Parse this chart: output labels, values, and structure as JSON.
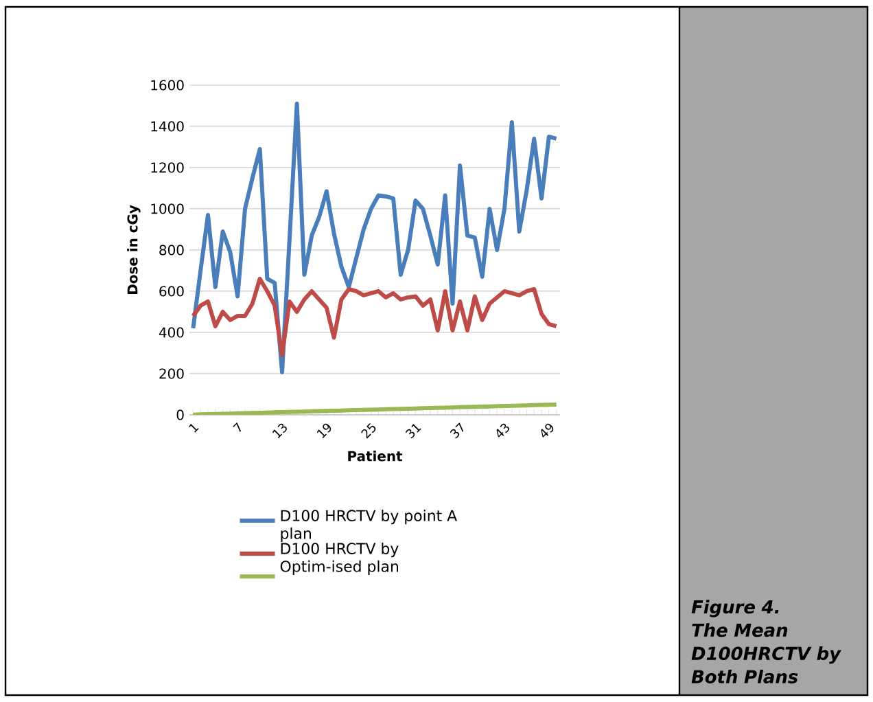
{
  "chart_data": {
    "type": "line",
    "xlabel": "Patient",
    "ylabel": "Dose in cGy",
    "categories": [
      "1",
      null,
      null,
      null,
      null,
      null,
      "7",
      null,
      null,
      null,
      null,
      null,
      "13",
      null,
      null,
      null,
      null,
      null,
      "19",
      null,
      null,
      null,
      null,
      null,
      "25",
      null,
      null,
      null,
      null,
      null,
      "31",
      null,
      null,
      null,
      null,
      null,
      "37",
      null,
      null,
      null,
      null,
      null,
      "43",
      null,
      null,
      null,
      null,
      null,
      "49",
      null
    ],
    "series": [
      {
        "name": "D100 HRCTV by point A plan",
        "color": "#4a7ebb",
        "values": [
          420,
          700,
          970,
          620,
          890,
          790,
          575,
          1000,
          1150,
          1290,
          660,
          640,
          207,
          850,
          1510,
          680,
          870,
          960,
          1085,
          880,
          720,
          620,
          760,
          900,
          1000,
          1065,
          1060,
          1050,
          680,
          800,
          1040,
          1000,
          870,
          730,
          1065,
          540,
          1210,
          870,
          860,
          670,
          1000,
          800,
          1000,
          1420,
          890,
          1090,
          1340,
          1050,
          1350,
          1340
        ]
      },
      {
        "name": "D100 HRCTV by Optim-ised plan",
        "color": "#be4b48",
        "values": [
          480,
          530,
          550,
          430,
          500,
          460,
          480,
          480,
          540,
          660,
          600,
          530,
          290,
          550,
          500,
          560,
          600,
          560,
          520,
          375,
          560,
          610,
          600,
          580,
          590,
          600,
          570,
          590,
          560,
          570,
          575,
          530,
          560,
          410,
          600,
          410,
          550,
          410,
          575,
          460,
          540,
          570,
          600,
          590,
          580,
          600,
          610,
          490,
          440,
          430
        ]
      },
      {
        "color": "#98b954",
        "values": [
          1,
          2,
          3,
          4,
          5,
          6,
          7,
          8,
          9,
          10,
          11,
          12,
          13,
          14,
          15,
          16,
          17,
          18,
          19,
          20,
          21,
          22,
          23,
          24,
          25,
          26,
          27,
          28,
          29,
          30,
          31,
          32,
          33,
          34,
          35,
          36,
          37,
          38,
          39,
          40,
          41,
          42,
          43,
          44,
          45,
          46,
          47,
          48,
          49,
          50
        ]
      }
    ],
    "ylim": [
      0,
      1600
    ],
    "yticks": [
      0,
      200,
      400,
      600,
      800,
      1000,
      1200,
      1400,
      1600
    ],
    "grid": "y",
    "legend": "bottom",
    "annotations": [
      "Figure 4. The Mean D100HRCTV by Both Plans"
    ]
  }
}
